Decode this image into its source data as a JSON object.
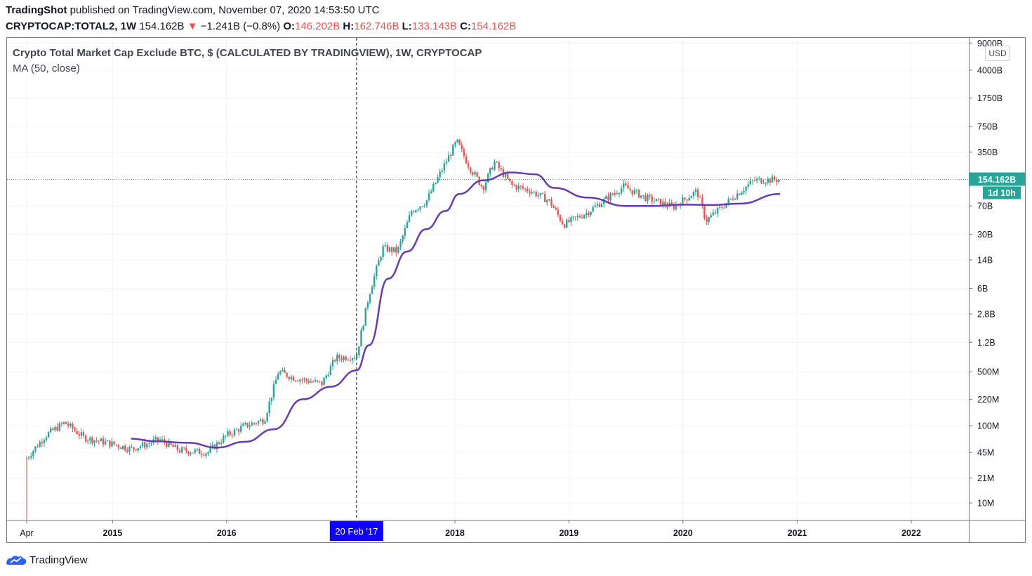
{
  "header": {
    "publisher": "TradingShot",
    "published_text": "published on TradingView.com, November 07, 2020 14:53:50 UTC",
    "symbol": "CRYPTOCAP:TOTAL2, 1W",
    "last": "154.162B",
    "arrow": "▼",
    "change": "−1.241B (−0.8%)",
    "o_label": "O:",
    "o_value": "146.202B",
    "h_label": "H:",
    "h_value": "162.746B",
    "l_label": "L:",
    "l_value": "133.143B",
    "c_label": "C:",
    "c_value": "154.162B"
  },
  "legend": {
    "title": "Crypto Total Market Cap Exclude BTC, $ (CALCULATED BY TRADINGVIEW), 1W, CRYPTOCAP",
    "ma": "MA (50, close)"
  },
  "currency_button": "USD",
  "price_tag": {
    "value": "154.162B",
    "countdown": "1d 10h"
  },
  "crosshair_label": "20 Feb '17",
  "footer": {
    "brand": "TradingView",
    "logo_icon": "tradingview-cloud-icon"
  },
  "colors": {
    "up": "#26a69a",
    "down": "#ef5350",
    "ma": "#673ab7",
    "crosshair_tag": "#1000ff",
    "price_tag": "#26a69a"
  },
  "chart_data": {
    "type": "candlestick",
    "scale": "log",
    "y_ticks": [
      "9000B",
      "4000B",
      "1750B",
      "750B",
      "350B",
      "154.162B",
      "70B",
      "30B",
      "14B",
      "6B",
      "2.8B",
      "1.2B",
      "500M",
      "220M",
      "100M",
      "45M",
      "21M",
      "10M"
    ],
    "x_ticks": [
      "Apr",
      "2015",
      "2016",
      "2018",
      "2019",
      "2020",
      "2021",
      "2022"
    ],
    "crosshair_date": "2017-02-20",
    "price_points": [
      [
        "2014-04-01",
        0.038
      ],
      [
        "2014-06-01",
        0.075
      ],
      [
        "2014-08-01",
        0.11
      ],
      [
        "2014-10-01",
        0.07
      ],
      [
        "2015-01-01",
        0.058
      ],
      [
        "2015-03-01",
        0.05
      ],
      [
        "2015-06-01",
        0.066
      ],
      [
        "2015-08-01",
        0.048
      ],
      [
        "2015-11-01",
        0.045
      ],
      [
        "2016-01-01",
        0.075
      ],
      [
        "2016-03-01",
        0.1
      ],
      [
        "2016-05-01",
        0.12
      ],
      [
        "2016-06-15",
        0.5
      ],
      [
        "2016-08-01",
        0.42
      ],
      [
        "2016-11-01",
        0.35
      ],
      [
        "2016-12-15",
        0.75
      ],
      [
        "2017-02-20",
        0.8
      ],
      [
        "2017-04-01",
        5.0
      ],
      [
        "2017-05-15",
        20.0
      ],
      [
        "2017-07-01",
        18.0
      ],
      [
        "2017-08-15",
        60.0
      ],
      [
        "2017-10-01",
        80.0
      ],
      [
        "2017-12-01",
        250.0
      ],
      [
        "2018-01-07",
        480.0
      ],
      [
        "2018-02-15",
        230.0
      ],
      [
        "2018-04-01",
        120.0
      ],
      [
        "2018-05-07",
        260.0
      ],
      [
        "2018-07-01",
        130.0
      ],
      [
        "2018-09-01",
        110.0
      ],
      [
        "2018-11-01",
        80.0
      ],
      [
        "2018-12-15",
        40.0
      ],
      [
        "2019-03-01",
        58.0
      ],
      [
        "2019-06-25",
        125.0
      ],
      [
        "2019-09-01",
        90.0
      ],
      [
        "2019-12-01",
        68.0
      ],
      [
        "2020-02-15",
        110.0
      ],
      [
        "2020-03-15",
        45.0
      ],
      [
        "2020-06-01",
        85.0
      ],
      [
        "2020-08-15",
        150.0
      ],
      [
        "2020-11-07",
        154.162
      ]
    ],
    "ma_points": [
      [
        "2015-03-01",
        0.068
      ],
      [
        "2015-05-15",
        0.063
      ],
      [
        "2015-09-01",
        0.06
      ],
      [
        "2015-12-01",
        0.052
      ],
      [
        "2016-03-01",
        0.062
      ],
      [
        "2016-06-01",
        0.09
      ],
      [
        "2016-09-01",
        0.22
      ],
      [
        "2016-12-01",
        0.32
      ],
      [
        "2017-02-20",
        0.52
      ],
      [
        "2017-04-01",
        1.1
      ],
      [
        "2017-06-01",
        8.0
      ],
      [
        "2017-08-01",
        18.0
      ],
      [
        "2017-10-01",
        35.0
      ],
      [
        "2017-12-01",
        60.0
      ],
      [
        "2018-01-15",
        100.0
      ],
      [
        "2018-04-01",
        150.0
      ],
      [
        "2018-07-01",
        190.0
      ],
      [
        "2018-09-15",
        180.0
      ],
      [
        "2018-11-15",
        120.0
      ],
      [
        "2019-03-01",
        90.0
      ],
      [
        "2019-07-01",
        70.0
      ],
      [
        "2019-10-01",
        70.0
      ],
      [
        "2020-01-01",
        73.0
      ],
      [
        "2020-04-01",
        72.0
      ],
      [
        "2020-07-01",
        75.0
      ],
      [
        "2020-11-07",
        100.0
      ]
    ]
  }
}
